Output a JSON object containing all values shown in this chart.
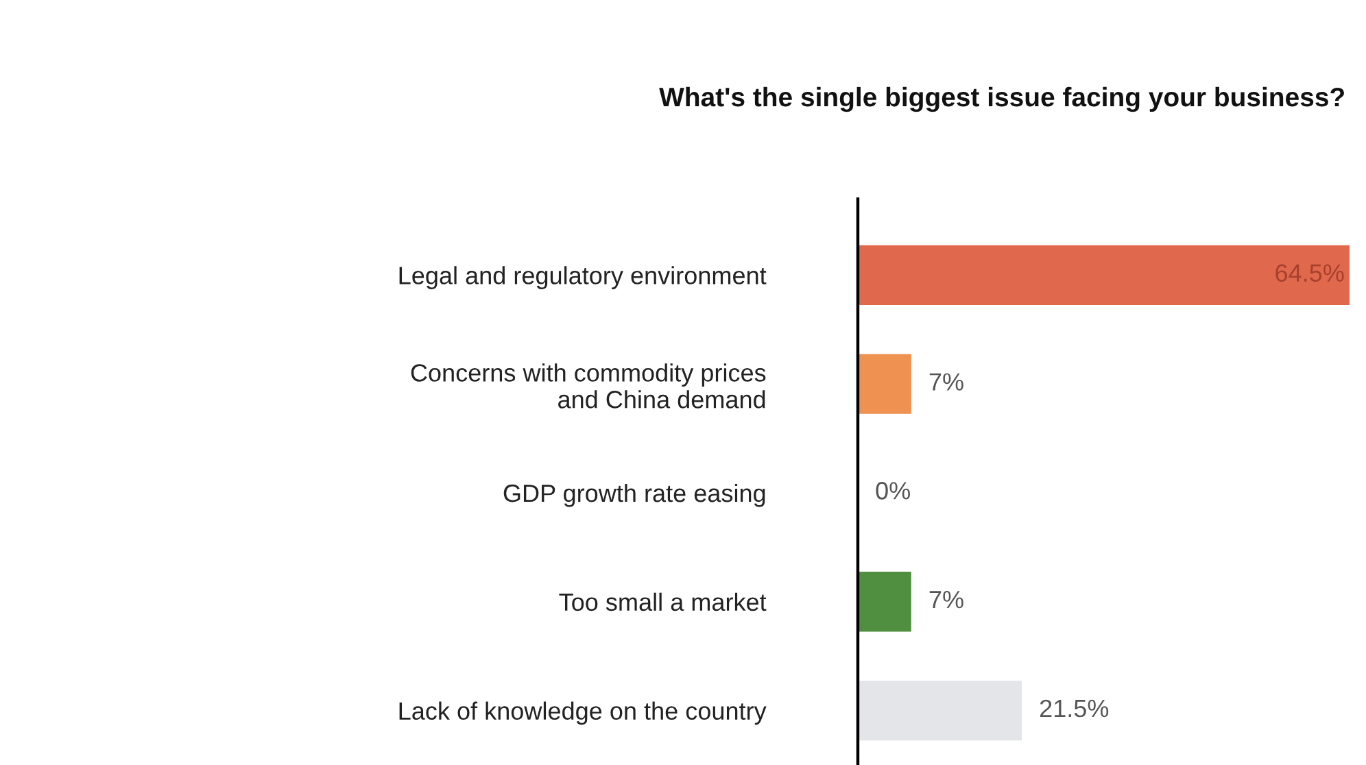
{
  "chart_data": {
    "type": "bar",
    "orientation": "horizontal",
    "title": "What's the single biggest issue facing your business?",
    "categories": [
      "Legal and regulatory environment",
      "Concerns with commodity prices\nand China demand",
      "GDP growth rate easing",
      "Too small a market",
      "Lack of knowledge on the country"
    ],
    "values": [
      64.5,
      7,
      0,
      7,
      21.5
    ],
    "colors": [
      "#e0694d",
      "#ef9150",
      "#bbbbbb",
      "#4f8f3f",
      "#e3e5e8"
    ],
    "value_labels": [
      "64.5%",
      "7%",
      "0%",
      "7%",
      "21.5%"
    ],
    "grid": false,
    "legend": false
  }
}
